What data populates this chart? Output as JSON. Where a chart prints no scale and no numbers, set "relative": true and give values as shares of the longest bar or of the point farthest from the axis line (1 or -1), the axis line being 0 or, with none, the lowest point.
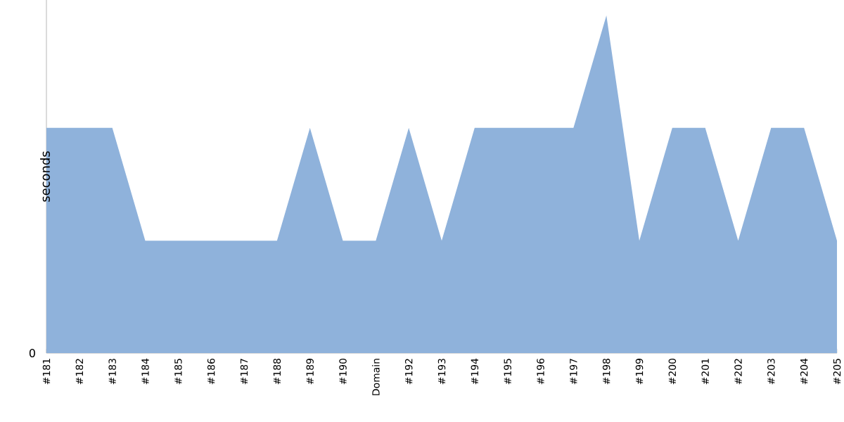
{
  "chart_data": {
    "type": "area",
    "relative": true,
    "ylabel": "seconds",
    "annotations": [
      "0"
    ],
    "color": "#8fb2db",
    "categories": [
      "#181",
      "#182",
      "#183",
      "#184",
      "#185",
      "#186",
      "#187",
      "#188",
      "#189",
      "#190",
      "Domain",
      "#192",
      "#193",
      "#194",
      "#195",
      "#196",
      "#197",
      "#198",
      "#199",
      "#200",
      "#201",
      "#202",
      "#203",
      "#204",
      "#205"
    ],
    "values": [
      0.667,
      0.667,
      0.667,
      0.333,
      0.333,
      0.333,
      0.333,
      0.333,
      0.667,
      0.333,
      0.333,
      0.667,
      0.333,
      0.667,
      0.667,
      0.667,
      0.667,
      1,
      0.333,
      0.667,
      0.667,
      0.333,
      0.667,
      0.667,
      0.333
    ]
  }
}
